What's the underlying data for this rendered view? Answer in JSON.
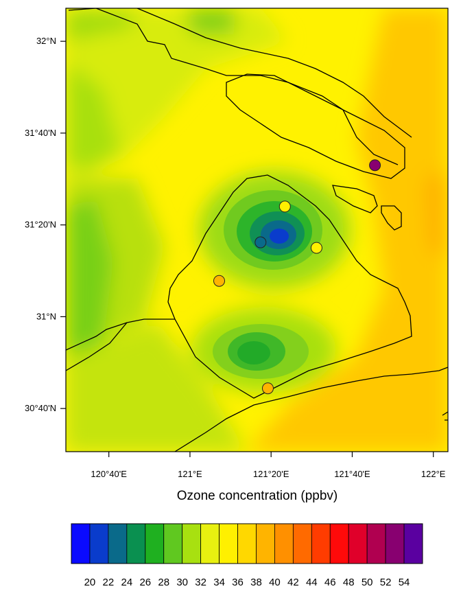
{
  "map": {
    "x_axis_title": "Ozone concentration (ppbv)",
    "lat_ticks": [
      {
        "value": 32.0,
        "label": "32°N"
      },
      {
        "value": 31.6667,
        "label": "31°40'N"
      },
      {
        "value": 31.3333,
        "label": "31°20'N"
      },
      {
        "value": 31.0,
        "label": "31°N"
      },
      {
        "value": 30.6667,
        "label": "30°40'N"
      }
    ],
    "lon_ticks": [
      {
        "value": 120.6667,
        "label": "120°40'E"
      },
      {
        "value": 121.0,
        "label": "121°E"
      },
      {
        "value": 121.3333,
        "label": "121°20'E"
      },
      {
        "value": 121.6667,
        "label": "121°40'E"
      },
      {
        "value": 122.0,
        "label": "122°E"
      }
    ],
    "lon_range": [
      120.49,
      122.06
    ],
    "lat_range": [
      30.51,
      32.12
    ],
    "stations": [
      {
        "lon": 121.76,
        "lat": 31.55,
        "value": 52
      },
      {
        "lon": 121.39,
        "lat": 31.4,
        "value": 35
      },
      {
        "lon": 121.52,
        "lat": 31.25,
        "value": 35
      },
      {
        "lon": 121.29,
        "lat": 31.27,
        "value": 23
      },
      {
        "lon": 121.12,
        "lat": 31.13,
        "value": 38
      },
      {
        "lon": 121.32,
        "lat": 30.74,
        "value": 38
      }
    ]
  },
  "colorbar": {
    "levels": [
      20,
      22,
      24,
      26,
      28,
      30,
      32,
      34,
      36,
      38,
      40,
      42,
      44,
      46,
      48,
      50,
      52,
      54
    ],
    "colors": [
      "#0a0aff",
      "#0a3ccc",
      "#0a6a8a",
      "#0a9050",
      "#1fb020",
      "#60c820",
      "#a8e010",
      "#e8f010",
      "#fff000",
      "#ffd800",
      "#ffb400",
      "#ff9000",
      "#ff6a00",
      "#ff3c00",
      "#ff0a0a",
      "#e0002a",
      "#b00050",
      "#880070",
      "#5a00a0"
    ]
  }
}
